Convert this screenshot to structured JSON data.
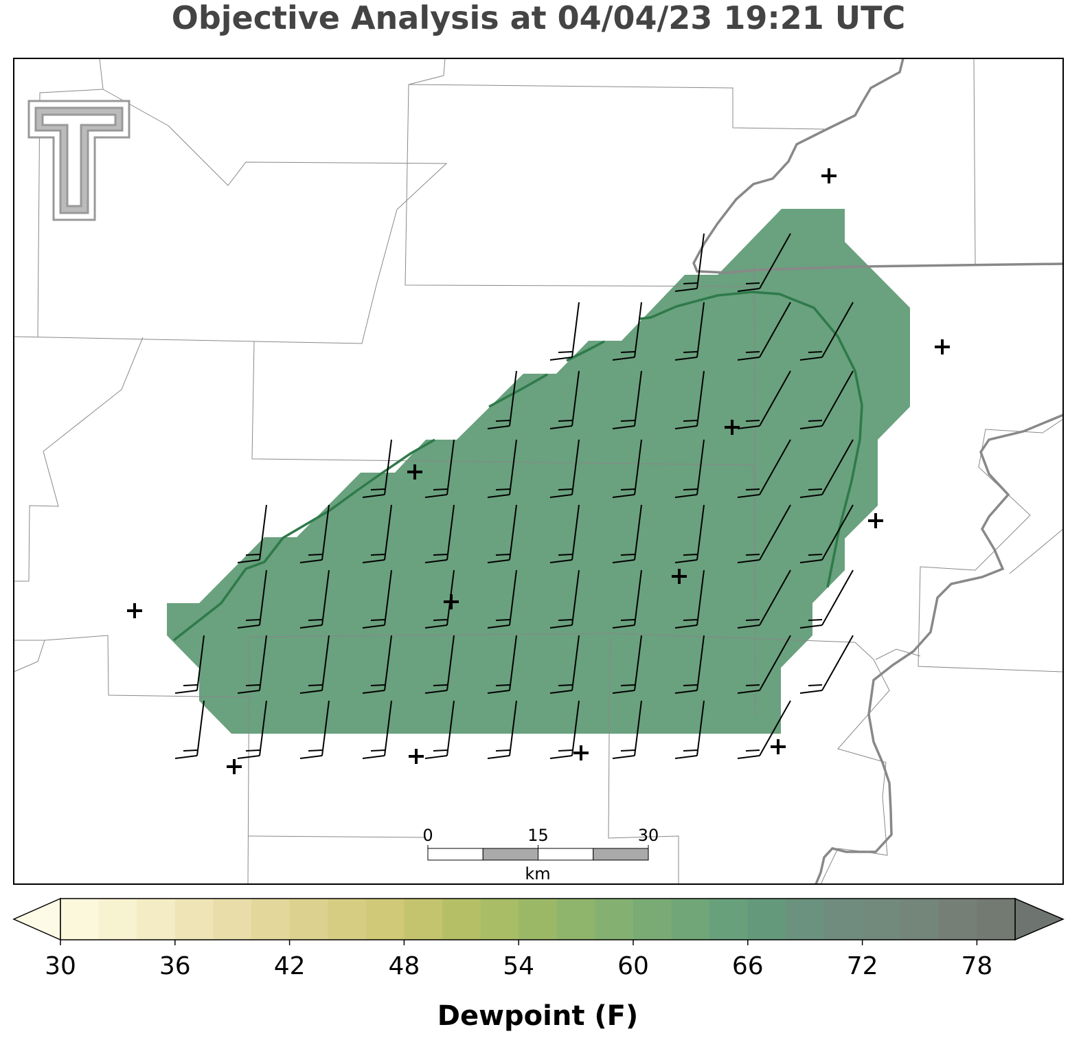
{
  "title": "Objective Analysis at 04/04/23 19:21 UTC",
  "colorbar": {
    "label": "Dewpoint (F)",
    "lim": [
      30,
      80
    ],
    "ticks": [
      30,
      36,
      42,
      48,
      54,
      60,
      66,
      72,
      78
    ],
    "bounds": [
      30,
      32,
      34,
      36,
      38,
      40,
      42,
      44,
      46,
      48,
      50,
      52,
      54,
      56,
      58,
      60,
      62,
      64,
      66,
      68,
      70,
      72,
      74,
      76,
      78,
      80
    ],
    "colors": [
      "#fbf8dc",
      "#f7f2d0",
      "#f3ecc4",
      "#eee4b6",
      "#e9dda9",
      "#e3d79c",
      "#ddd18f",
      "#d6cd83",
      "#cfc978",
      "#c4c46e",
      "#b5c066",
      "#a8bd66",
      "#9bb867",
      "#8fb46c",
      "#84b071",
      "#7aab74",
      "#70a678",
      "#68a07b",
      "#65997c",
      "#6a927e",
      "#6f8c7e",
      "#728a7c",
      "#74857a",
      "#757f76",
      "#737a72"
    ],
    "under_color": "#fdfbe5",
    "over_color": "#6e7570"
  },
  "scale_bar": {
    "lim": [
      0,
      30
    ],
    "ticks": [
      0,
      15,
      30
    ],
    "unit": "km"
  },
  "field_color": "#6aa17e"
}
